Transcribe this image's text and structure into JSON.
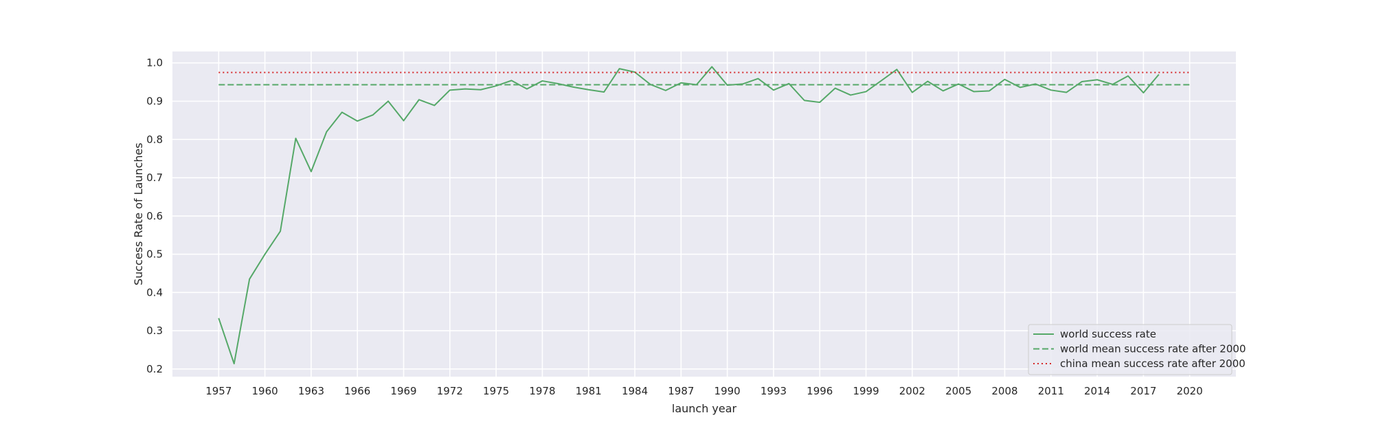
{
  "chart_data": {
    "type": "line",
    "title": "",
    "xlabel": "launch year",
    "ylabel": "Success Rate of Launches",
    "xlim": [
      1954,
      2023
    ],
    "ylim": [
      0.18,
      1.03
    ],
    "x_ticks": [
      1957,
      1960,
      1963,
      1966,
      1969,
      1972,
      1975,
      1978,
      1981,
      1984,
      1987,
      1990,
      1993,
      1996,
      1999,
      2002,
      2005,
      2008,
      2011,
      2014,
      2017,
      2020
    ],
    "y_ticks": [
      0.2,
      0.3,
      0.4,
      0.5,
      0.6,
      0.7,
      0.8,
      0.9,
      1.0
    ],
    "y_tick_labels": [
      "0.2",
      "0.3",
      "0.4",
      "0.5",
      "0.6",
      "0.7",
      "0.8",
      "0.9",
      "1.0"
    ],
    "grid": true,
    "background": "#eaeaf2",
    "legend_position": "lower-right",
    "series": [
      {
        "name": "world success rate",
        "style": "solid",
        "color": "#55a868",
        "x": [
          1957,
          1958,
          1959,
          1960,
          1961,
          1962,
          1963,
          1964,
          1965,
          1966,
          1967,
          1968,
          1969,
          1970,
          1971,
          1972,
          1973,
          1974,
          1975,
          1976,
          1977,
          1978,
          1979,
          1980,
          1981,
          1982,
          1983,
          1984,
          1985,
          1986,
          1987,
          1988,
          1989,
          1990,
          1991,
          1992,
          1993,
          1994,
          1995,
          1996,
          1997,
          1998,
          1999,
          2000,
          2001,
          2002,
          2003,
          2004,
          2005,
          2006,
          2007,
          2008,
          2009,
          2010,
          2011,
          2012,
          2013,
          2014,
          2015,
          2016,
          2017,
          2018
        ],
        "y": [
          0.333,
          0.214,
          0.435,
          0.5,
          0.56,
          0.803,
          0.716,
          0.82,
          0.871,
          0.848,
          0.864,
          0.9,
          0.849,
          0.904,
          0.889,
          0.929,
          0.932,
          0.93,
          0.94,
          0.954,
          0.932,
          0.953,
          0.946,
          0.937,
          0.93,
          0.924,
          0.985,
          0.976,
          0.944,
          0.928,
          0.948,
          0.943,
          0.99,
          0.942,
          0.945,
          0.959,
          0.929,
          0.946,
          0.902,
          0.897,
          0.934,
          0.916,
          0.925,
          0.954,
          0.983,
          0.923,
          0.952,
          0.927,
          0.945,
          0.925,
          0.927,
          0.957,
          0.936,
          0.945,
          0.929,
          0.923,
          0.951,
          0.956,
          0.944,
          0.966,
          0.922,
          0.97
        ]
      },
      {
        "name": "world mean success rate after 2000",
        "style": "dashed",
        "color": "#55a868",
        "x": [
          1957,
          2020
        ],
        "y": [
          0.943,
          0.943
        ]
      },
      {
        "name": "china mean success rate after 2000",
        "style": "dotted",
        "color": "#d62728",
        "x": [
          1957,
          2020
        ],
        "y": [
          0.975,
          0.975
        ]
      }
    ]
  }
}
